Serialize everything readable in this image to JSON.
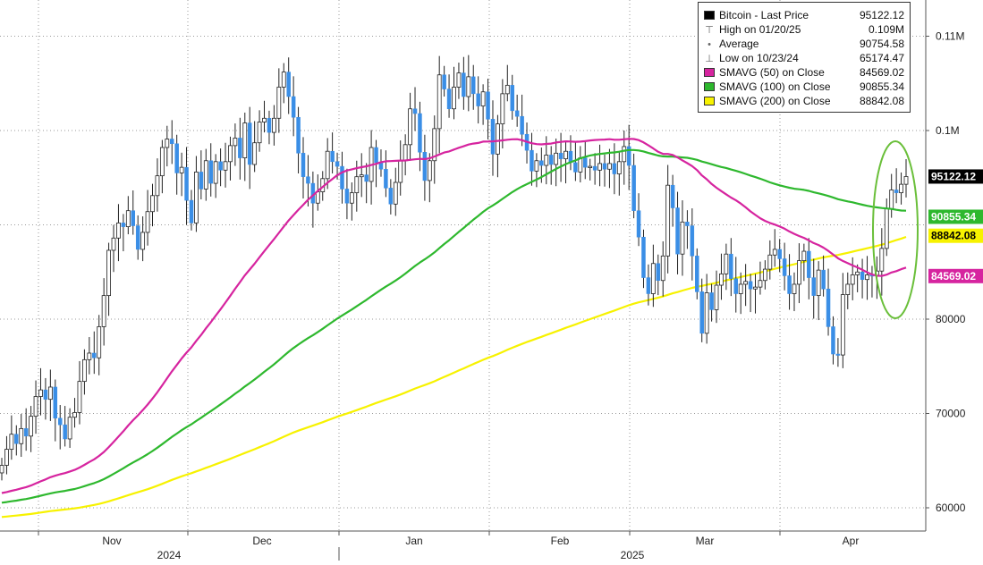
{
  "chart_data": {
    "type": "line",
    "title": "",
    "ylim": [
      58000,
      114000
    ],
    "y_ticks": [
      {
        "value": 60000,
        "label": "60000"
      },
      {
        "value": 70000,
        "label": "70000"
      },
      {
        "value": 80000,
        "label": "80000"
      },
      {
        "value": 100000,
        "label": "0.1M"
      },
      {
        "value": 110000,
        "label": "0.11M"
      }
    ],
    "x_month_labels": [
      "Nov",
      "Dec",
      "Jan",
      "Feb",
      "Mar",
      "Apr"
    ],
    "x_year_labels": [
      "2024",
      "2025"
    ],
    "legend": [
      {
        "label": "Bitcoin - Last Price",
        "value": "95122.12",
        "symbol": "square",
        "color": "#000000"
      },
      {
        "label": "High on 01/20/25",
        "value": "0.109M",
        "symbol": "high"
      },
      {
        "label": "Average",
        "value": "90754.58",
        "symbol": "avg"
      },
      {
        "label": "Low on 10/23/24",
        "value": "65174.47",
        "symbol": "low"
      },
      {
        "label": "SMAVG (50)  on Close",
        "value": "84569.02",
        "symbol": "square",
        "color": "#d6249f"
      },
      {
        "label": "SMAVG (100)  on Close",
        "value": "90855.34",
        "symbol": "square",
        "color": "#2eb82e"
      },
      {
        "label": "SMAVG (200)  on Close",
        "value": "88842.08",
        "symbol": "square",
        "color": "#f7f200"
      }
    ],
    "value_tags": [
      {
        "label": "95122.12",
        "value": 95122.12,
        "bg": "#000000",
        "fg": "#ffffff"
      },
      {
        "label": "90855.34",
        "value": 90855.34,
        "bg": "#2eb82e",
        "fg": "#ffffff"
      },
      {
        "label": "88842.08",
        "value": 88842.08,
        "bg": "#f7f200",
        "fg": "#000000"
      },
      {
        "label": "84569.02",
        "value": 84569.02,
        "bg": "#d6249f",
        "fg": "#ffffff"
      }
    ],
    "candles": {
      "color_up": "#ffffff",
      "color_down": "#3a8ee6",
      "outline": "#222222",
      "close": [
        64500,
        66200,
        67800,
        66800,
        68400,
        67600,
        69700,
        71800,
        72500,
        71500,
        72800,
        69500,
        68800,
        67300,
        69600,
        70100,
        73400,
        75700,
        76400,
        75900,
        79200,
        82500,
        87300,
        88600,
        90200,
        89800,
        91500,
        89900,
        87400,
        89200,
        91400,
        93100,
        95200,
        98200,
        99100,
        98600,
        95500,
        96100,
        92600,
        90200,
        95600,
        93800,
        96800,
        94400,
        96700,
        95800,
        96700,
        98400,
        99200,
        97100,
        100800,
        96400,
        98700,
        100900,
        101300,
        99800,
        101300,
        104600,
        106200,
        103600,
        101400,
        97600,
        95100,
        94400,
        92300,
        93500,
        94900,
        97800,
        96700,
        96200,
        93800,
        92300,
        93400,
        95100,
        95300,
        94600,
        98200,
        96600,
        95900,
        93900,
        92200,
        94500,
        96800,
        98500,
        102300,
        101800,
        97700,
        94700,
        96800,
        100200,
        105900,
        104400,
        102300,
        104600,
        106100,
        103600,
        105700,
        103900,
        102600,
        104100,
        101200,
        97500,
        100700,
        103900,
        104800,
        102100,
        101500,
        99600,
        97900,
        95700,
        96800,
        96300,
        97400,
        96400,
        97600,
        97000,
        97800,
        96600,
        95600,
        97100,
        96100,
        96200,
        95800,
        96500,
        95900,
        96500,
        95400,
        96700,
        98300,
        96300,
        91500,
        88700,
        84400,
        82700,
        85900,
        84100,
        86700,
        94200,
        91800,
        86900,
        90300,
        89900,
        86700,
        82900,
        78500,
        82800,
        81000,
        83600,
        84800,
        86900,
        84300,
        82700,
        83700,
        84000,
        83200,
        83400,
        84100,
        85300,
        86800,
        87400,
        86400,
        84600,
        82700,
        83700,
        86200,
        87200,
        84400,
        82500,
        85200,
        83200,
        79200,
        76300,
        76200,
        82600,
        83700,
        84700,
        85000,
        84200,
        84700,
        84600,
        85100,
        87500,
        91700,
        93700,
        93400,
        94300,
        95122
      ]
    }
  }
}
